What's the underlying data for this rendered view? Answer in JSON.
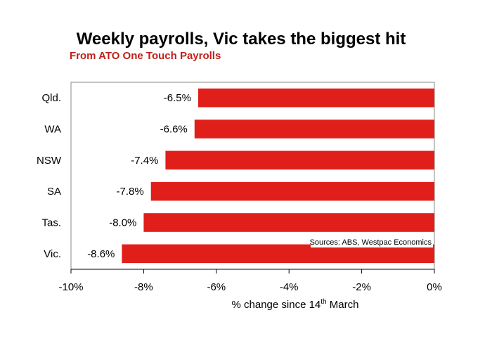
{
  "chart_data": {
    "type": "bar",
    "orientation": "horizontal",
    "title": "Weekly payrolls, Vic takes the biggest hit",
    "subtitle": "From ATO One Touch Payrolls",
    "categories": [
      "Qld.",
      "WA",
      "NSW",
      "SA",
      "Tas.",
      "Vic."
    ],
    "values": [
      -6.5,
      -6.6,
      -7.4,
      -7.8,
      -8.0,
      -8.6
    ],
    "value_labels": [
      "-6.5%",
      "-6.6%",
      "-7.4%",
      "-7.8%",
      "-8.0%",
      "-8.6%"
    ],
    "xlim": [
      -10,
      0
    ],
    "x_ticks": [
      -10,
      -8,
      -6,
      -4,
      -2,
      0
    ],
    "x_tick_labels": [
      "-10%",
      "-8%",
      "-6%",
      "-4%",
      "-2%",
      "0%"
    ],
    "xlabel": {
      "prefix": "% change since 14",
      "superscript": "th",
      "suffix": " March"
    },
    "ylabel": "",
    "grid": false,
    "source": "Sources: ABS, Westpac Economics",
    "colors": {
      "bar": "#e01f1a",
      "subtitle": "#c0201a",
      "frame": "#8a8a8a"
    }
  }
}
